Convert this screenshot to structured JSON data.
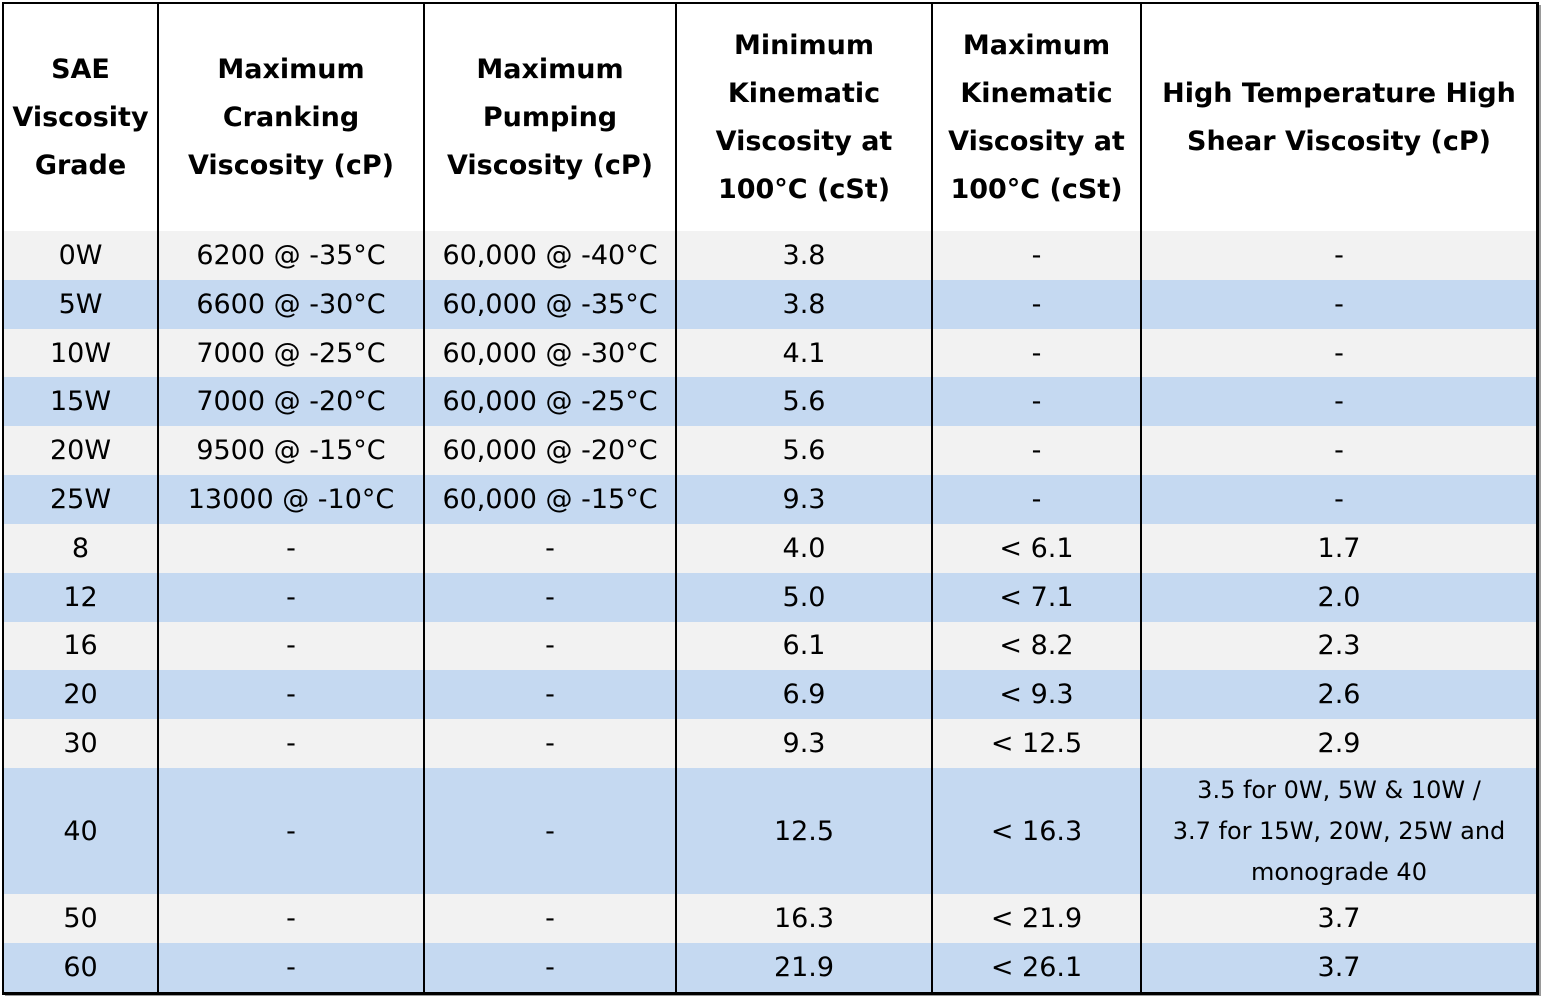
{
  "headers": [
    [
      "SAE",
      "Viscosity",
      "Grade"
    ],
    [
      "Maximum",
      "Cranking",
      "Viscosity (cP)"
    ],
    [
      "Maximum",
      "Pumping",
      "Viscosity (cP)"
    ],
    [
      "Minimum",
      "Kinematic",
      "Viscosity at",
      "100°C (cSt)"
    ],
    [
      "Maximum",
      "Kinematic",
      "Viscosity at",
      "100°C (cSt)"
    ],
    [
      "High Temperature High",
      "Shear Viscosity (cP)"
    ]
  ],
  "rows": [
    [
      "0W",
      "6200 @ -35°C",
      "60,000 @ -40°C",
      "3.8",
      "-",
      "-"
    ],
    [
      "5W",
      "6600 @ -30°C",
      "60,000 @ -35°C",
      "3.8",
      "-",
      "-"
    ],
    [
      "10W",
      "7000 @ -25°C",
      "60,000 @ -30°C",
      "4.1",
      "-",
      "-"
    ],
    [
      "15W",
      "7000 @ -20°C",
      "60,000 @ -25°C",
      "5.6",
      "-",
      "-"
    ],
    [
      "20W",
      "9500 @ -15°C",
      "60,000 @ -20°C",
      "5.6",
      "-",
      "-"
    ],
    [
      "25W",
      "13000 @ -10°C",
      "60,000 @ -15°C",
      "9.3",
      "-",
      "-"
    ],
    [
      "8",
      "-",
      "-",
      "4.0",
      "< 6.1",
      "1.7"
    ],
    [
      "12",
      "-",
      "-",
      "5.0",
      "< 7.1",
      "2.0"
    ],
    [
      "16",
      "-",
      "-",
      "6.1",
      "< 8.2",
      "2.3"
    ],
    [
      "20",
      "-",
      "-",
      "6.9",
      "< 9.3",
      "2.6"
    ],
    [
      "30",
      "-",
      "-",
      "9.3",
      "< 12.5",
      "2.9"
    ],
    [
      "40",
      "-",
      "-",
      "12.5",
      "< 16.3",
      ""
    ],
    [
      "50",
      "-",
      "-",
      "16.3",
      "< 21.9",
      "3.7"
    ],
    [
      "60",
      "-",
      "-",
      "21.9",
      "< 26.1",
      "3.7"
    ]
  ],
  "note_40": [
    "3.5 for 0W, 5W & 10W /",
    "3.7 for 15W, 20W, 25W and",
    "monograde 40"
  ],
  "colors": {
    "row_light": "#f2f2f2",
    "row_blue": "#c5d9f1",
    "border": "#000000"
  }
}
